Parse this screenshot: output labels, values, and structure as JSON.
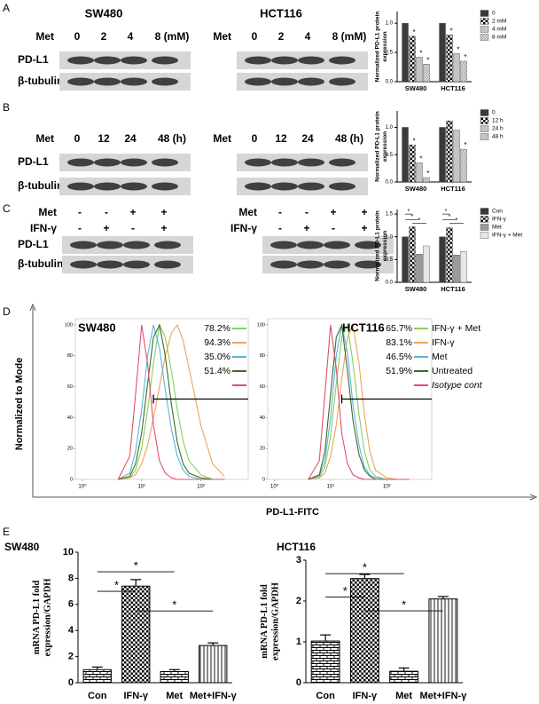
{
  "panel_letters": [
    "A",
    "B",
    "C",
    "D",
    "E"
  ],
  "blots": [
    {
      "cell_lines": [
        "SW480",
        "HCT116"
      ],
      "rows": [
        {
          "label": "Met",
          "lanes": [
            "0",
            "2",
            "4",
            "8 (mM)"
          ]
        }
      ],
      "bands": [
        "PD-L1",
        "β-tubulin"
      ]
    },
    {
      "rows": [
        {
          "label": "Met",
          "lanes": [
            "0",
            "12",
            "24",
            "48 (h)"
          ]
        }
      ],
      "bands": [
        "PD-L1",
        "β-tubulin"
      ]
    },
    {
      "rows": [
        {
          "label": "Met",
          "lanes": [
            "-",
            "-",
            "+",
            "+"
          ]
        },
        {
          "label": "IFN-γ",
          "lanes": [
            "-",
            "+",
            "-",
            "+"
          ]
        }
      ],
      "bands": [
        "PD-L1",
        "β-tubulin"
      ]
    }
  ],
  "chart_data": [
    {
      "type": "bar",
      "ylabel": [
        "Normalized PD-L1 protein",
        "expression"
      ],
      "categories": [
        "SW480",
        "HCT116"
      ],
      "series": [
        {
          "name": "0",
          "color": "#3a3a3a",
          "pattern": "solid",
          "values": [
            1,
            1
          ]
        },
        {
          "name": "2 mM",
          "color": "#000000",
          "pattern": "checker",
          "values": [
            0.78,
            0.8
          ],
          "significance": [
            "*",
            "*"
          ]
        },
        {
          "name": "4 mM",
          "color": "#c4c4c4",
          "pattern": "solid",
          "values": [
            0.42,
            0.48
          ],
          "significance": [
            "*",
            "*"
          ]
        },
        {
          "name": "8 mM",
          "color": "#d8d8d8",
          "pattern": "hatch",
          "values": [
            0.3,
            0.35
          ],
          "significance": [
            "*",
            "*"
          ]
        }
      ],
      "ylim": [
        0,
        1.2
      ],
      "yticks": [
        {
          "value": 0,
          "label": "0.0"
        },
        0.5,
        {
          "value": 1,
          "label": "1.0"
        }
      ]
    },
    {
      "type": "bar",
      "ylabel": [
        "Normalized PD-L1 protein",
        "expression"
      ],
      "categories": [
        "SW480",
        "HCT116"
      ],
      "series": [
        {
          "name": "0",
          "color": "#3a3a3a",
          "pattern": "solid",
          "values": [
            1,
            1
          ]
        },
        {
          "name": "12 h",
          "color": "#000000",
          "pattern": "checker",
          "values": [
            0.68,
            1.12
          ],
          "significance": [
            "*",
            null
          ]
        },
        {
          "name": "24 h",
          "color": "#c4c4c4",
          "pattern": "solid",
          "values": [
            0.35,
            0.95
          ],
          "significance": [
            "*",
            null
          ]
        },
        {
          "name": "48 h",
          "color": "#d8d8d8",
          "pattern": "hatch",
          "values": [
            0.08,
            0.6
          ],
          "significance": [
            "*",
            "*"
          ]
        }
      ],
      "ylim": [
        0,
        1.3
      ],
      "yticks": [
        {
          "value": 0,
          "label": "0.0"
        },
        0.5,
        {
          "value": 1,
          "label": "1.0"
        }
      ]
    },
    {
      "type": "bar",
      "ylabel": [
        "Normalized PD-L1 protein",
        "expression"
      ],
      "categories": [
        "SW480",
        "HCT116"
      ],
      "series": [
        {
          "name": "Con",
          "color": "#3a3a3a",
          "pattern": "solid",
          "values": [
            1,
            1
          ]
        },
        {
          "name": "IFN-γ",
          "color": "#000000",
          "pattern": "checker",
          "values": [
            1.22,
            1.2
          ]
        },
        {
          "name": "Met",
          "color": "#9a9a9a",
          "pattern": "solid",
          "values": [
            0.62,
            0.6
          ]
        },
        {
          "name": "IFN-γ + Met",
          "color": "#e6e6e6",
          "pattern": "solid",
          "values": [
            0.8,
            0.68
          ]
        }
      ],
      "brackets": [
        {
          "category": 0,
          "from": 0,
          "to": 1,
          "y": 1.5,
          "label": "*"
        },
        {
          "category": 0,
          "from": 0,
          "to": 2,
          "y": 1.38,
          "label": "*"
        },
        {
          "category": 0,
          "from": 1,
          "to": 3,
          "y": 1.3,
          "label": "*"
        },
        {
          "category": 1,
          "from": 0,
          "to": 1,
          "y": 1.5,
          "label": "*"
        },
        {
          "category": 1,
          "from": 0,
          "to": 2,
          "y": 1.38,
          "label": "*"
        },
        {
          "category": 1,
          "from": 1,
          "to": 3,
          "y": 1.3,
          "label": "*"
        }
      ],
      "ylim": [
        0,
        1.6
      ],
      "yticks": [
        {
          "value": 0,
          "label": "0.0"
        },
        0.5,
        {
          "value": 1,
          "label": "1.0"
        },
        1.5
      ]
    },
    {
      "type": "line",
      "title": "SW480",
      "xscale": "log",
      "xlabel": "PD-L1-FITC",
      "ylabel": "Normalized to Mode",
      "x": [
        4,
        6.3,
        7.9,
        10,
        12.6,
        15.8,
        20,
        25,
        32,
        40,
        50,
        63,
        100,
        158,
        251
      ],
      "series": [
        {
          "color": "#86d05e",
          "gate_label": "78.2%",
          "values": [
            0,
            1,
            6,
            20,
            45,
            75,
            100,
            92,
            70,
            45,
            25,
            12,
            3,
            0,
            0
          ]
        },
        {
          "color": "#f0a35a",
          "gate_label": "94.3%",
          "values": [
            0,
            1,
            3,
            10,
            22,
            40,
            60,
            80,
            95,
            100,
            90,
            72,
            35,
            10,
            2
          ]
        },
        {
          "color": "#5ab4d8",
          "gate_label": "35.0%",
          "values": [
            0,
            4,
            18,
            45,
            80,
            100,
            85,
            58,
            32,
            15,
            6,
            2,
            0,
            0,
            0
          ]
        },
        {
          "color": "#3d6b2c",
          "gate_label": "51.4%",
          "values": [
            0,
            2,
            10,
            30,
            62,
            92,
            100,
            80,
            48,
            24,
            10,
            4,
            1,
            0,
            0
          ]
        },
        {
          "color": "#e0506a",
          "values": [
            0,
            15,
            55,
            100,
            75,
            35,
            12,
            4,
            1,
            0,
            0,
            0,
            0,
            0,
            0
          ]
        }
      ],
      "gate": {
        "start": 15.8,
        "level": 52
      },
      "xlim": [
        0.76,
        630
      ],
      "xticks": [
        {
          "value": 1,
          "label": "10⁰"
        },
        {
          "value": 10,
          "label": "10¹"
        },
        {
          "value": 100,
          "label": "10²"
        }
      ],
      "ylim": [
        0,
        104
      ],
      "yticks": [
        0,
        20,
        40,
        60,
        80,
        100
      ]
    },
    {
      "type": "line",
      "title": "HCT116",
      "xscale": "log",
      "x": [
        4,
        6.3,
        7.9,
        10,
        12.6,
        15.8,
        20,
        25,
        32,
        40,
        50,
        63,
        100,
        158,
        251
      ],
      "series": [
        {
          "name": "IFN-γ + Met",
          "color": "#86d05e",
          "gate_label": "65.7%",
          "values": [
            0,
            1,
            8,
            28,
            62,
            92,
            100,
            75,
            42,
            18,
            6,
            2,
            0,
            0,
            0
          ]
        },
        {
          "name": "IFN-γ",
          "color": "#f0a35a",
          "gate_label": "83.1%",
          "values": [
            0,
            1,
            4,
            15,
            35,
            65,
            92,
            100,
            75,
            42,
            18,
            6,
            1,
            0,
            0
          ]
        },
        {
          "name": "Met",
          "color": "#5ab4d8",
          "gate_label": "46.5%",
          "values": [
            0,
            2,
            12,
            40,
            80,
            100,
            82,
            48,
            22,
            8,
            3,
            1,
            0,
            0,
            0
          ]
        },
        {
          "name": "Untreated",
          "color": "#3d6b2c",
          "gate_label": "51.9%",
          "values": [
            0,
            3,
            18,
            55,
            92,
            100,
            70,
            38,
            16,
            6,
            2,
            0,
            0,
            0,
            0
          ]
        },
        {
          "name": "Isotype cont",
          "color": "#e0506a",
          "values": [
            0,
            12,
            55,
            100,
            72,
            30,
            10,
            3,
            1,
            0,
            0,
            0,
            0,
            0,
            0
          ]
        }
      ],
      "gate": {
        "start": 15.8,
        "level": 52
      },
      "xlim": [
        0.76,
        630
      ],
      "xticks": [
        {
          "value": 1,
          "label": "10⁰"
        },
        {
          "value": 10,
          "label": "10¹"
        },
        {
          "value": 100,
          "label": "10²"
        }
      ],
      "ylim": [
        0,
        104
      ],
      "yticks": [
        0,
        20,
        40,
        60,
        80,
        100
      ]
    },
    {
      "type": "bar",
      "title": "SW480",
      "ylabel": [
        "mRNA PD-L1 fold",
        "expression/GAPDH"
      ],
      "categories": [
        "Con",
        "IFN-γ",
        "Met",
        "Met+IFN-γ"
      ],
      "values": [
        1.0,
        7.4,
        0.85,
        2.85
      ],
      "errors": [
        0.2,
        0.5,
        0.15,
        0.2
      ],
      "patterns": [
        "bricks",
        "checker",
        "bricks",
        "vlines"
      ],
      "color": "#000000",
      "brackets": [
        {
          "from": 0,
          "to": 1,
          "y": 7.0,
          "label": "*"
        },
        {
          "from": 0,
          "to": 2,
          "y": 8.5,
          "label": "*"
        },
        {
          "from": 1,
          "to": 3,
          "y": 5.5,
          "label": "*"
        }
      ],
      "ylim": [
        0,
        10
      ],
      "yticks": [
        0,
        2,
        4,
        6,
        8,
        10
      ]
    },
    {
      "type": "bar",
      "title": "HCT116",
      "ylabel": [
        "mRNA PD-L1 fold",
        "expression/GAPDH"
      ],
      "categories": [
        "Con",
        "IFN-γ",
        "Met",
        "Met+IFN-γ"
      ],
      "values": [
        1.02,
        2.55,
        0.28,
        2.05
      ],
      "errors": [
        0.15,
        0.1,
        0.08,
        0.06
      ],
      "patterns": [
        "bricks",
        "checker",
        "bricks",
        "vlines"
      ],
      "color": "#000000",
      "brackets": [
        {
          "from": 0,
          "to": 1,
          "y": 2.1,
          "label": "*"
        },
        {
          "from": 0,
          "to": 2,
          "y": 2.67,
          "label": "*"
        },
        {
          "from": 1,
          "to": 3,
          "y": 1.76,
          "label": "*"
        }
      ],
      "ylim": [
        0,
        3
      ],
      "yticks": [
        0,
        1,
        2,
        3
      ]
    }
  ]
}
